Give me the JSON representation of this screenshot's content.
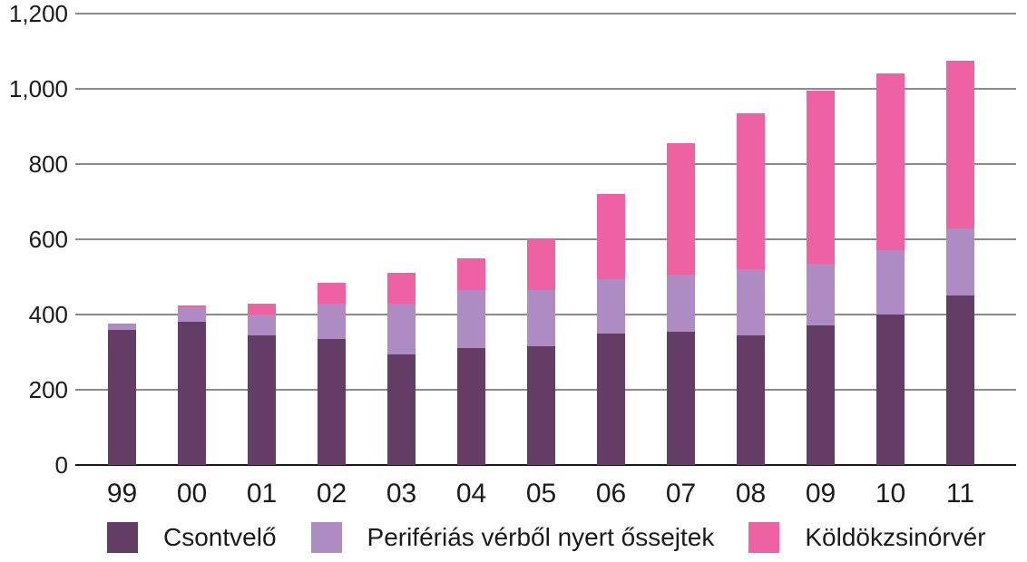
{
  "chart_data": {
    "type": "bar",
    "stacked": true,
    "title": "",
    "xlabel": "",
    "ylabel": "",
    "categories": [
      "99",
      "00",
      "01",
      "02",
      "03",
      "04",
      "05",
      "06",
      "07",
      "08",
      "09",
      "10",
      "11"
    ],
    "series": [
      {
        "name": "Csontvelő",
        "color": "#633D66",
        "values": [
          360,
          380,
          345,
          335,
          295,
          310,
          315,
          350,
          355,
          345,
          370,
          400,
          450
        ]
      },
      {
        "name": "Perifériás vérből nyert őssejtek",
        "color": "#AE8BC2",
        "values": [
          15,
          40,
          55,
          95,
          135,
          155,
          150,
          145,
          150,
          175,
          165,
          170,
          180
        ]
      },
      {
        "name": "Köldökzsinórvér",
        "color": "#EE61A3",
        "values": [
          0,
          5,
          30,
          55,
          80,
          85,
          135,
          225,
          350,
          415,
          460,
          470,
          445
        ]
      }
    ],
    "stacked_totals": [
      375,
      425,
      430,
      485,
      510,
      550,
      600,
      720,
      855,
      935,
      995,
      1040,
      1075
    ],
    "ylim": [
      0,
      1200
    ],
    "ytick_step": 200,
    "ytick_labels": [
      "0",
      "200",
      "400",
      "600",
      "800",
      "1,000",
      "1,200"
    ],
    "grid": true,
    "legend_position": "bottom"
  },
  "styles": {
    "background_color": "#FFFFFF",
    "grid_color": "#8A8A8A",
    "axis_color": "#1A1A1A",
    "text_color": "#1A1A1A"
  }
}
